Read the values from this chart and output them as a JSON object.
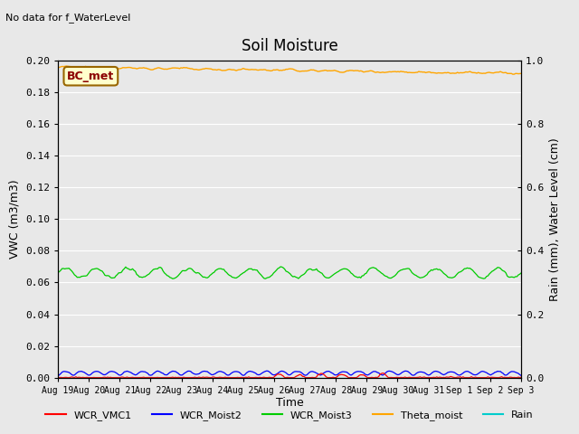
{
  "title": "Soil Moisture",
  "top_left_text": "No data for f_WaterLevel",
  "annotation_box": "BC_met",
  "ylabel_left": "VWC (m3/m3)",
  "ylabel_right": "Rain (mm), Water Level (cm)",
  "xlabel": "Time",
  "ylim_left": [
    0,
    0.2
  ],
  "ylim_right": [
    0.0,
    1.0
  ],
  "x_tick_labels": [
    "Aug 19",
    "Aug 20",
    "Aug 21",
    "Aug 22",
    "Aug 23",
    "Aug 24",
    "Aug 25",
    "Aug 26",
    "Aug 27",
    "Aug 28",
    "Aug 29",
    "Aug 30",
    "Aug 31",
    "Sep 1",
    "Sep 2",
    "Sep 3"
  ],
  "background_color": "#e8e8e8",
  "fig_background": "#e8e8e8",
  "legend_entries": [
    {
      "label": "WCR_VMC1",
      "color": "#ff0000"
    },
    {
      "label": "WCR_Moist2",
      "color": "#0000ff"
    },
    {
      "label": "WCR_Moist3",
      "color": "#00cc00"
    },
    {
      "label": "Theta_moist",
      "color": "#ffa500"
    },
    {
      "label": "Rain",
      "color": "#00cccc"
    }
  ],
  "n_points": 336,
  "theta_base": 0.196,
  "theta_trend": -0.004,
  "green_base": 0.066,
  "green_amplitude": 0.003,
  "green_period": 1.0,
  "blue_base": 0.001,
  "blue_amplitude": 0.003,
  "red_base": 0.0,
  "red_amplitude": 0.002
}
